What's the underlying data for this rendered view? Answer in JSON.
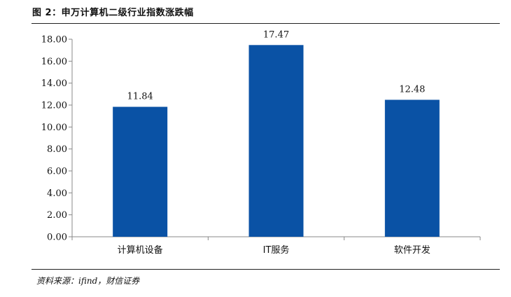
{
  "header": {
    "title": "图 2：申万计算机二级行业指数涨跌幅"
  },
  "footer": {
    "source": "资料来源：ifind，财信证券"
  },
  "colors": {
    "bar": "#0a52a5",
    "axis": "#888888"
  },
  "chart_data": {
    "type": "bar",
    "categories": [
      "计算机设备",
      "IT服务",
      "软件开发"
    ],
    "values": [
      11.84,
      17.47,
      12.48
    ],
    "data_labels": [
      "11.84",
      "17.47",
      "12.48"
    ],
    "ylim": [
      0,
      18
    ],
    "yticks": [
      "0.00",
      "2.00",
      "4.00",
      "6.00",
      "8.00",
      "10.00",
      "12.00",
      "14.00",
      "16.00",
      "18.00"
    ],
    "grid": false,
    "legend": "none"
  }
}
